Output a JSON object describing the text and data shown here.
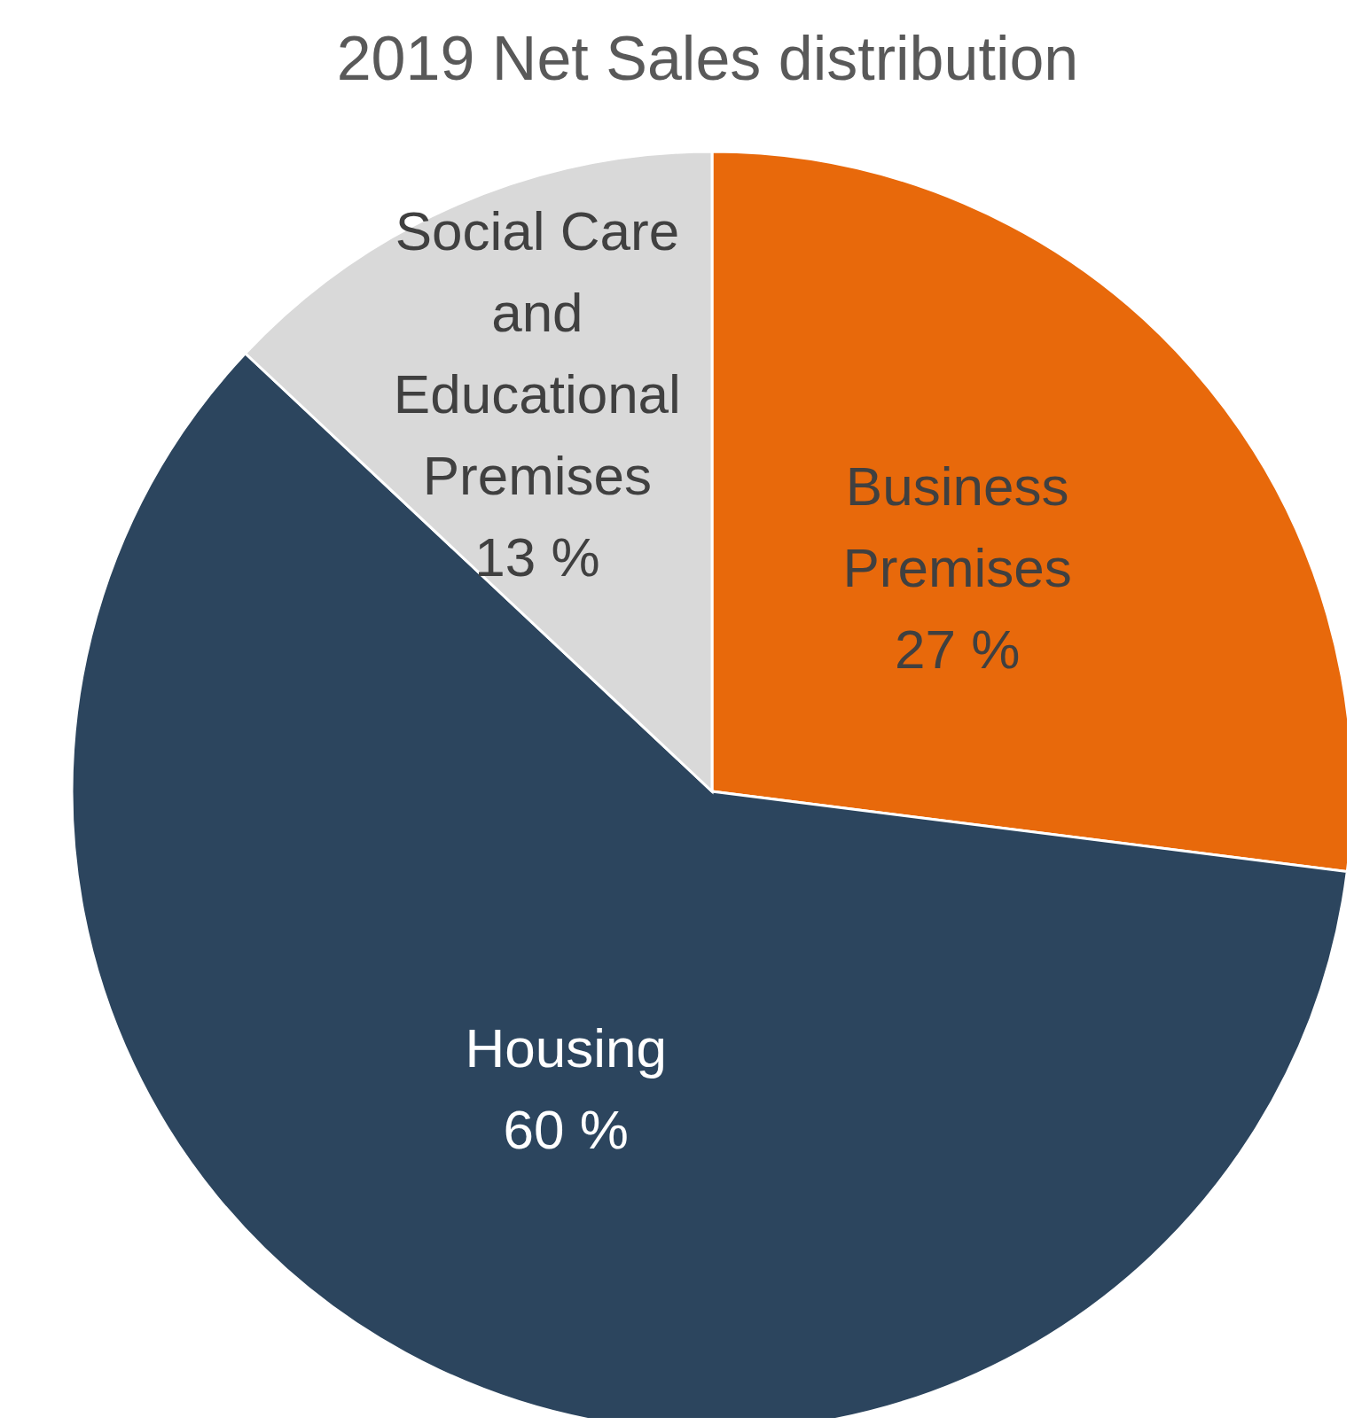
{
  "chart_data": {
    "type": "pie",
    "title": "2019 Net Sales distribution",
    "categories": [
      "Business Premises",
      "Housing",
      "Social Care and Educational Premises"
    ],
    "values": [
      27,
      60,
      13
    ],
    "value_labels": [
      "27 %",
      "60 %",
      "13 %"
    ],
    "colors": [
      "#e8690b",
      "#2c455e",
      "#d9d9d9"
    ]
  }
}
